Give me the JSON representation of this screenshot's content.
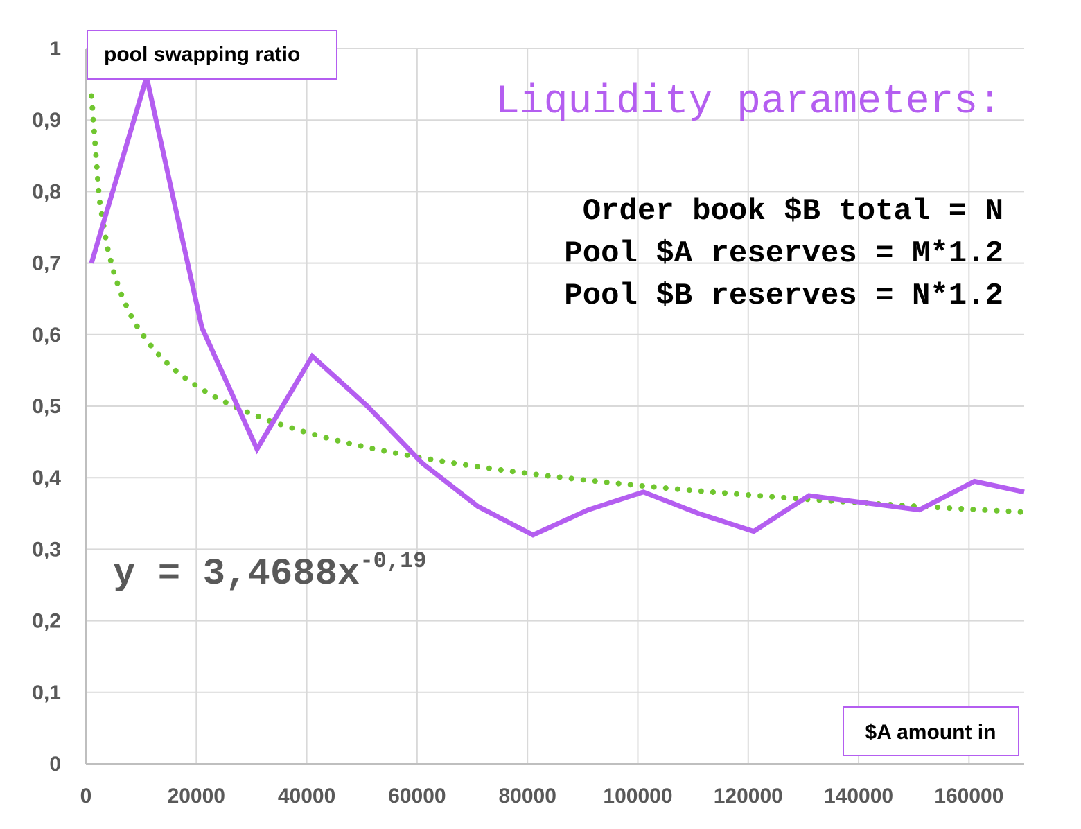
{
  "chart_data": {
    "type": "line",
    "title": "",
    "ylabel": "pool swapping ratio",
    "xlabel": "$A amount in",
    "xlim": [
      0,
      170000
    ],
    "ylim": [
      0,
      1
    ],
    "x_ticks": [
      0,
      20000,
      40000,
      60000,
      80000,
      100000,
      120000,
      140000,
      160000
    ],
    "x_tick_labels": [
      "0",
      "20000",
      "40000",
      "60000",
      "80000",
      "100000",
      "120000",
      "140000",
      "160000"
    ],
    "y_ticks": [
      0,
      0.1,
      0.2,
      0.3,
      0.4,
      0.5,
      0.6,
      0.7,
      0.8,
      0.9,
      1
    ],
    "y_tick_labels": [
      "0",
      "0,1",
      "0,2",
      "0,3",
      "0,4",
      "0,5",
      "0,6",
      "0,7",
      "0,8",
      "0,9",
      "1"
    ],
    "grid": true,
    "legend": "none",
    "series": [
      {
        "style": "solid",
        "color": "#b45ef0",
        "x": [
          1000,
          11000,
          21000,
          31000,
          41000,
          51000,
          61000,
          71000,
          81000,
          91000,
          101000,
          111000,
          121000,
          131000,
          141000,
          151000,
          161000,
          170000
        ],
        "y": [
          0.7,
          0.96,
          0.61,
          0.44,
          0.57,
          0.5,
          0.42,
          0.36,
          0.32,
          0.355,
          0.38,
          0.35,
          0.325,
          0.375,
          0.365,
          0.355,
          0.395,
          0.38
        ]
      },
      {
        "style": "dotted",
        "color": "#70c62f",
        "trendline": {
          "coefficient": 3.4688,
          "exponent": -0.19,
          "x_start": 1000,
          "x_end": 170000
        }
      }
    ],
    "annotations": {
      "title_text": "Liquidity parameters:",
      "lines": [
        "Order book $B total = N",
        "Pool $A reserves = M*1.2",
        "Pool $B reserves = N*1.2"
      ],
      "equation_base": "y = 3,4688x",
      "equation_exponent": "-0,19"
    },
    "colors": {
      "accent": "#b45ef0",
      "trend": "#70c62f",
      "grid": "#d9d9d9",
      "tick_text": "#595959",
      "equation_text": "#595959"
    }
  }
}
